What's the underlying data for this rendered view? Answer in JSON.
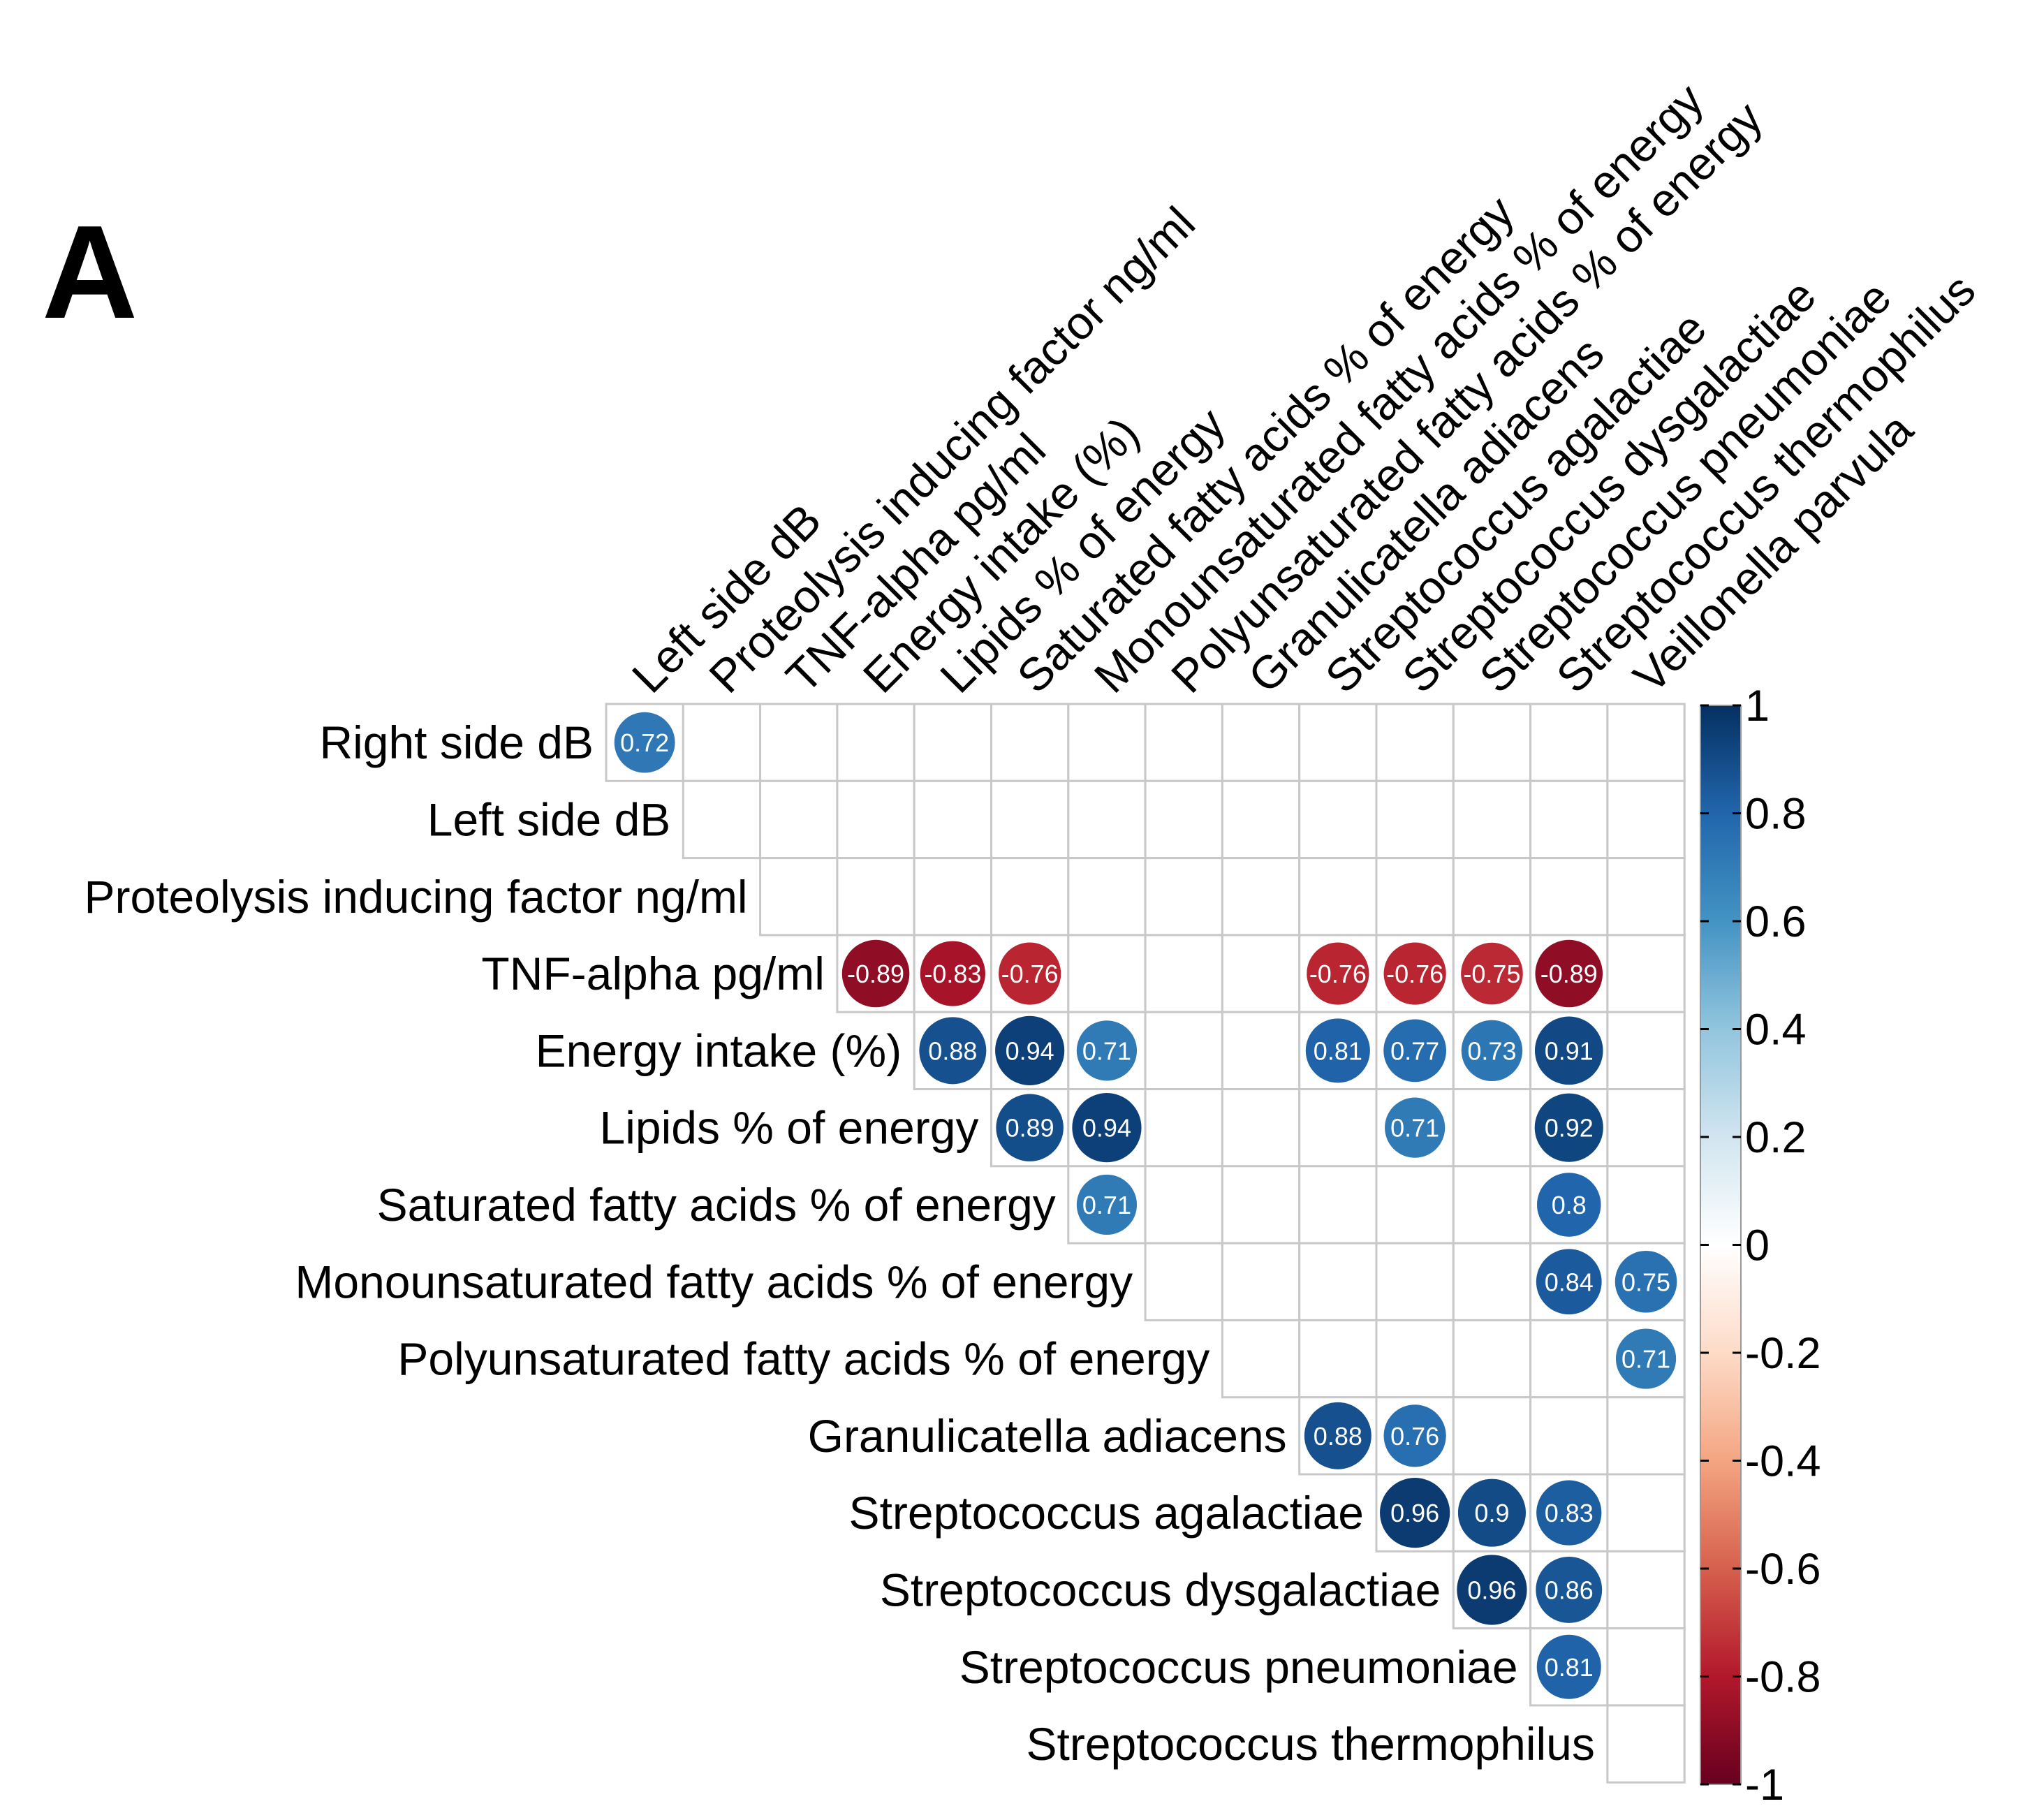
{
  "panel_label": "A",
  "chart_data": {
    "type": "heatmap",
    "subtype": "correlation-matrix-upper-triangle-circles",
    "title": "",
    "row_labels": [
      "Right side dB",
      "Left side dB",
      "Proteolysis inducing factor ng/ml",
      "TNF-alpha pg/ml",
      "Energy intake (%)",
      "Lipids % of energy",
      "Saturated fatty acids % of energy",
      "Monounsaturated fatty acids % of energy",
      "Polyunsaturated fatty acids % of energy",
      "Granulicatella adiacens",
      "Streptococcus agalactiae",
      "Streptococcus dysgalactiae",
      "Streptococcus pneumoniae",
      "Streptococcus thermophilus"
    ],
    "column_labels": [
      "Left side dB",
      "Proteolysis inducing factor ng/ml",
      "TNF-alpha pg/ml",
      "Energy intake (%)",
      "Lipids % of energy",
      "Saturated fatty acids % of energy",
      "Monounsaturated fatty acids % of energy",
      "Polyunsaturated fatty acids % of energy",
      "Granulicatella adiacens",
      "Streptococcus agalactiae",
      "Streptococcus dysgalactiae",
      "Streptococcus pneumoniae",
      "Streptococcus thermophilus",
      "Veillonella parvula"
    ],
    "cells": [
      {
        "row": 0,
        "col": 0,
        "value": 0.72,
        "label": "0.72"
      },
      {
        "row": 3,
        "col": 3,
        "value": -0.89,
        "label": "-0.89"
      },
      {
        "row": 3,
        "col": 4,
        "value": -0.83,
        "label": "-0.83"
      },
      {
        "row": 3,
        "col": 5,
        "value": -0.76,
        "label": "-0.76"
      },
      {
        "row": 3,
        "col": 9,
        "value": -0.76,
        "label": "-0.76"
      },
      {
        "row": 3,
        "col": 10,
        "value": -0.76,
        "label": "-0.76"
      },
      {
        "row": 3,
        "col": 11,
        "value": -0.75,
        "label": "-0.75"
      },
      {
        "row": 3,
        "col": 12,
        "value": -0.89,
        "label": "-0.89"
      },
      {
        "row": 4,
        "col": 4,
        "value": 0.88,
        "label": "0.88"
      },
      {
        "row": 4,
        "col": 5,
        "value": 0.94,
        "label": "0.94"
      },
      {
        "row": 4,
        "col": 6,
        "value": 0.71,
        "label": "0.71"
      },
      {
        "row": 4,
        "col": 9,
        "value": 0.81,
        "label": "0.81"
      },
      {
        "row": 4,
        "col": 10,
        "value": 0.77,
        "label": "0.77"
      },
      {
        "row": 4,
        "col": 11,
        "value": 0.73,
        "label": "0.73"
      },
      {
        "row": 4,
        "col": 12,
        "value": 0.91,
        "label": "0.91"
      },
      {
        "row": 5,
        "col": 5,
        "value": 0.89,
        "label": "0.89"
      },
      {
        "row": 5,
        "col": 6,
        "value": 0.94,
        "label": "0.94"
      },
      {
        "row": 5,
        "col": 10,
        "value": 0.71,
        "label": "0.71"
      },
      {
        "row": 5,
        "col": 12,
        "value": 0.92,
        "label": "0.92"
      },
      {
        "row": 6,
        "col": 6,
        "value": 0.71,
        "label": "0.71"
      },
      {
        "row": 6,
        "col": 12,
        "value": 0.8,
        "label": "0.8"
      },
      {
        "row": 7,
        "col": 12,
        "value": 0.84,
        "label": "0.84"
      },
      {
        "row": 7,
        "col": 13,
        "value": 0.75,
        "label": "0.75"
      },
      {
        "row": 8,
        "col": 13,
        "value": 0.71,
        "label": "0.71"
      },
      {
        "row": 9,
        "col": 9,
        "value": 0.88,
        "label": "0.88"
      },
      {
        "row": 9,
        "col": 10,
        "value": 0.76,
        "label": "0.76"
      },
      {
        "row": 10,
        "col": 10,
        "value": 0.96,
        "label": "0.96"
      },
      {
        "row": 10,
        "col": 11,
        "value": 0.9,
        "label": "0.9"
      },
      {
        "row": 10,
        "col": 12,
        "value": 0.83,
        "label": "0.83"
      },
      {
        "row": 11,
        "col": 11,
        "value": 0.96,
        "label": "0.96"
      },
      {
        "row": 11,
        "col": 12,
        "value": 0.86,
        "label": "0.86"
      },
      {
        "row": 12,
        "col": 12,
        "value": 0.81,
        "label": "0.81"
      }
    ],
    "value_range": [
      -1,
      1
    ],
    "colorbar": {
      "ticks": [
        1,
        0.8,
        0.6,
        0.4,
        0.2,
        0,
        -0.2,
        -0.4,
        -0.6,
        -0.8,
        -1
      ],
      "tick_labels": [
        "1",
        "0.8",
        "0.6",
        "0.4",
        "0.2",
        "0",
        "-0.2",
        "-0.4",
        "-0.6",
        "-0.8",
        "-1"
      ],
      "placement": "right"
    },
    "colors": [
      "#67001F",
      "#B2182B",
      "#D6604D",
      "#F4A582",
      "#FDDBC7",
      "#FFFFFF",
      "#D1E5F0",
      "#92C5DE",
      "#4393C3",
      "#2166AC",
      "#053061"
    ],
    "grid_color": "#c8c8c8",
    "cell_text_color": "#ffffff"
  }
}
